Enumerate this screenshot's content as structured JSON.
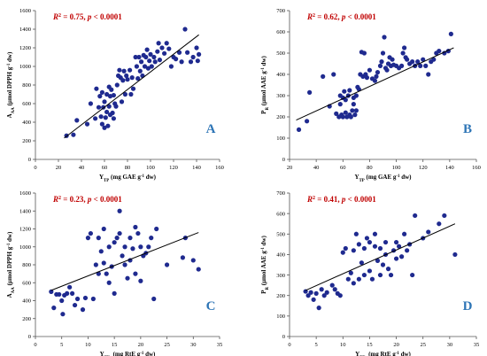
{
  "colors": {
    "marker": "#1f2a8f",
    "trendline": "#000000",
    "annotation": "#c00000",
    "panel_label": "#2e75b6",
    "axis": "#555555"
  },
  "chart_data": [
    {
      "type": "scatter",
      "panel_label": "A",
      "annotation_r2": "0.75",
      "annotation_p": "p < 0.0001",
      "ylabel": "A_AA (μmol DPPH g^-1 dw)",
      "xlabel": "Y_TP (mg GAE g^-1 dw)",
      "xlim": [
        0,
        160
      ],
      "ylim": [
        0,
        1600
      ],
      "xticks": [
        0,
        20,
        40,
        60,
        80,
        100,
        120,
        140,
        160
      ],
      "yticks": [
        0,
        200,
        400,
        600,
        800,
        1000,
        1200,
        1400,
        1600
      ],
      "trendline": {
        "x": [
          25,
          142
        ],
        "y": [
          230,
          1340
        ]
      },
      "points": [
        [
          27,
          255
        ],
        [
          33,
          265
        ],
        [
          36,
          420
        ],
        [
          45,
          380
        ],
        [
          48,
          600
        ],
        [
          52,
          440
        ],
        [
          53,
          760
        ],
        [
          55,
          560
        ],
        [
          56,
          680
        ],
        [
          57,
          460
        ],
        [
          58,
          380
        ],
        [
          58,
          720
        ],
        [
          59,
          560
        ],
        [
          60,
          340
        ],
        [
          60,
          620
        ],
        [
          61,
          450
        ],
        [
          62,
          700
        ],
        [
          62,
          510
        ],
        [
          63,
          360
        ],
        [
          64,
          570
        ],
        [
          64,
          780
        ],
        [
          65,
          680
        ],
        [
          65,
          480
        ],
        [
          66,
          750
        ],
        [
          67,
          500
        ],
        [
          68,
          690
        ],
        [
          68,
          440
        ],
        [
          69,
          600
        ],
        [
          70,
          570
        ],
        [
          71,
          800
        ],
        [
          72,
          900
        ],
        [
          73,
          960
        ],
        [
          74,
          880
        ],
        [
          75,
          620
        ],
        [
          76,
          850
        ],
        [
          77,
          950
        ],
        [
          78,
          700
        ],
        [
          79,
          900
        ],
        [
          80,
          860
        ],
        [
          82,
          960
        ],
        [
          83,
          700
        ],
        [
          84,
          880
        ],
        [
          85,
          760
        ],
        [
          87,
          1100
        ],
        [
          88,
          1000
        ],
        [
          89,
          870
        ],
        [
          90,
          1100
        ],
        [
          91,
          950
        ],
        [
          92,
          1050
        ],
        [
          93,
          900
        ],
        [
          94,
          1120
        ],
        [
          95,
          1000
        ],
        [
          96,
          1100
        ],
        [
          97,
          1180
        ],
        [
          98,
          980
        ],
        [
          99,
          1060
        ],
        [
          100,
          1130
        ],
        [
          101,
          1000
        ],
        [
          103,
          1100
        ],
        [
          104,
          1050
        ],
        [
          106,
          1160
        ],
        [
          107,
          1250
        ],
        [
          108,
          1070
        ],
        [
          110,
          1200
        ],
        [
          112,
          1140
        ],
        [
          114,
          1250
        ],
        [
          116,
          1190
        ],
        [
          118,
          1000
        ],
        [
          120,
          1100
        ],
        [
          122,
          1080
        ],
        [
          125,
          1150
        ],
        [
          127,
          1050
        ],
        [
          130,
          1400
        ],
        [
          132,
          1150
        ],
        [
          135,
          1050
        ],
        [
          137,
          1100
        ],
        [
          140,
          1200
        ],
        [
          141,
          1060
        ],
        [
          142,
          1130
        ]
      ]
    },
    {
      "type": "scatter",
      "panel_label": "B",
      "annotation_r2": "0.62",
      "annotation_p": "p < 0.0001",
      "ylabel": "P_R (μmol AAE g^-1 dw)",
      "xlabel": "Y_TP (mg GAE g^-1 dw)",
      "xlim": [
        20,
        160
      ],
      "ylim": [
        0,
        700
      ],
      "xticks": [
        20,
        40,
        60,
        80,
        100,
        120,
        140,
        160
      ],
      "yticks": [
        0,
        100,
        200,
        300,
        400,
        500,
        600,
        700
      ],
      "trendline": {
        "x": [
          25,
          143
        ],
        "y": [
          185,
          525
        ]
      },
      "points": [
        [
          27,
          140
        ],
        [
          33,
          180
        ],
        [
          35,
          315
        ],
        [
          45,
          390
        ],
        [
          50,
          250
        ],
        [
          53,
          400
        ],
        [
          55,
          215
        ],
        [
          57,
          200
        ],
        [
          58,
          260
        ],
        [
          58,
          300
        ],
        [
          59,
          210
        ],
        [
          60,
          290
        ],
        [
          60,
          200
        ],
        [
          61,
          320
        ],
        [
          62,
          220
        ],
        [
          62,
          280
        ],
        [
          63,
          200
        ],
        [
          64,
          300
        ],
        [
          65,
          210
        ],
        [
          65,
          325
        ],
        [
          66,
          200
        ],
        [
          67,
          230
        ],
        [
          68,
          290
        ],
        [
          68,
          260
        ],
        [
          69,
          210
        ],
        [
          70,
          300
        ],
        [
          70,
          230
        ],
        [
          71,
          340
        ],
        [
          72,
          330
        ],
        [
          73,
          400
        ],
        [
          74,
          505
        ],
        [
          75,
          390
        ],
        [
          76,
          500
        ],
        [
          77,
          400
        ],
        [
          78,
          385
        ],
        [
          80,
          420
        ],
        [
          82,
          380
        ],
        [
          84,
          370
        ],
        [
          85,
          390
        ],
        [
          86,
          410
        ],
        [
          88,
          440
        ],
        [
          89,
          460
        ],
        [
          90,
          500
        ],
        [
          91,
          575
        ],
        [
          92,
          430
        ],
        [
          93,
          420
        ],
        [
          94,
          450
        ],
        [
          95,
          480
        ],
        [
          96,
          440
        ],
        [
          97,
          470
        ],
        [
          98,
          445
        ],
        [
          100,
          440
        ],
        [
          102,
          430
        ],
        [
          104,
          440
        ],
        [
          105,
          500
        ],
        [
          106,
          525
        ],
        [
          107,
          480
        ],
        [
          108,
          470
        ],
        [
          110,
          450
        ],
        [
          112,
          460
        ],
        [
          114,
          440
        ],
        [
          116,
          460
        ],
        [
          118,
          440
        ],
        [
          120,
          470
        ],
        [
          122,
          440
        ],
        [
          124,
          400
        ],
        [
          126,
          460
        ],
        [
          128,
          470
        ],
        [
          130,
          500
        ],
        [
          132,
          510
        ],
        [
          136,
          500
        ],
        [
          139,
          510
        ],
        [
          141,
          590
        ]
      ]
    },
    {
      "type": "scatter",
      "panel_label": "C",
      "annotation_r2": "0.23",
      "annotation_p": "p < 0.0001",
      "ylabel": "A_AA (μmol DPPH g^-1 dw)",
      "xlabel": "Y_TFs (mg RtE g^-1 dw)",
      "xlim": [
        0,
        35
      ],
      "ylim": [
        0,
        1600
      ],
      "xticks": [
        0,
        5,
        10,
        15,
        20,
        25,
        30,
        35
      ],
      "yticks": [
        0,
        200,
        400,
        600,
        800,
        1000,
        1200,
        1400,
        1600
      ],
      "trendline": {
        "x": [
          3,
          31
        ],
        "y": [
          515,
          1160
        ]
      },
      "points": [
        [
          3,
          500
        ],
        [
          3.5,
          320
        ],
        [
          4,
          470
        ],
        [
          4.5,
          470
        ],
        [
          5,
          400
        ],
        [
          5.2,
          250
        ],
        [
          5.5,
          460
        ],
        [
          6,
          480
        ],
        [
          6.5,
          550
        ],
        [
          7,
          480
        ],
        [
          7.5,
          350
        ],
        [
          8,
          420
        ],
        [
          9,
          300
        ],
        [
          9.5,
          430
        ],
        [
          10,
          1100
        ],
        [
          10.5,
          1150
        ],
        [
          11,
          420
        ],
        [
          11.5,
          800
        ],
        [
          12,
          700
        ],
        [
          12,
          1100
        ],
        [
          12.5,
          950
        ],
        [
          13,
          820
        ],
        [
          13,
          1200
        ],
        [
          13.5,
          700
        ],
        [
          14,
          1000
        ],
        [
          14,
          600
        ],
        [
          14.5,
          780
        ],
        [
          15,
          1050
        ],
        [
          15,
          480
        ],
        [
          15.5,
          1100
        ],
        [
          16,
          1400
        ],
        [
          16,
          1150
        ],
        [
          16.5,
          900
        ],
        [
          17,
          800
        ],
        [
          17,
          1000
        ],
        [
          17.5,
          650
        ],
        [
          18,
          850
        ],
        [
          18,
          1100
        ],
        [
          18.5,
          980
        ],
        [
          19,
          700
        ],
        [
          19,
          1220
        ],
        [
          19.5,
          1150
        ],
        [
          20,
          620
        ],
        [
          20,
          1000
        ],
        [
          20.5,
          900
        ],
        [
          21,
          930
        ],
        [
          21.5,
          1000
        ],
        [
          22,
          1100
        ],
        [
          22.5,
          420
        ],
        [
          23,
          1200
        ],
        [
          25,
          800
        ],
        [
          28,
          880
        ],
        [
          28.5,
          1100
        ],
        [
          30,
          850
        ],
        [
          31,
          750
        ]
      ]
    },
    {
      "type": "scatter",
      "panel_label": "D",
      "annotation_r2": "0.41",
      "annotation_p": "p < 0.0001",
      "ylabel": "P_R (μmol AAE g^-1 dw)",
      "xlabel": "Y_TFs (mg RtE g^-1 dw)",
      "xlim": [
        0,
        35
      ],
      "ylim": [
        0,
        700
      ],
      "xticks": [
        0,
        5,
        10,
        15,
        20,
        25,
        30,
        35
      ],
      "yticks": [
        0,
        100,
        200,
        300,
        400,
        500,
        600,
        700
      ],
      "trendline": {
        "x": [
          3,
          31
        ],
        "y": [
          225,
          550
        ]
      },
      "points": [
        [
          3,
          220
        ],
        [
          3.5,
          200
        ],
        [
          4,
          215
        ],
        [
          4.5,
          180
        ],
        [
          5,
          210
        ],
        [
          5.5,
          140
        ],
        [
          6,
          230
        ],
        [
          6.5,
          200
        ],
        [
          7,
          215
        ],
        [
          8,
          250
        ],
        [
          8.5,
          230
        ],
        [
          9,
          210
        ],
        [
          9.5,
          200
        ],
        [
          10,
          410
        ],
        [
          10.5,
          430
        ],
        [
          11,
          280
        ],
        [
          11.5,
          310
        ],
        [
          12,
          260
        ],
        [
          12,
          420
        ],
        [
          12.5,
          500
        ],
        [
          13,
          280
        ],
        [
          13,
          450
        ],
        [
          13.5,
          360
        ],
        [
          14,
          300
        ],
        [
          14,
          430
        ],
        [
          14.5,
          480
        ],
        [
          15,
          320
        ],
        [
          15,
          460
        ],
        [
          15.5,
          280
        ],
        [
          16,
          440
        ],
        [
          16,
          500
        ],
        [
          16.5,
          370
        ],
        [
          17,
          300
        ],
        [
          17,
          430
        ],
        [
          17.5,
          350
        ],
        [
          18,
          460
        ],
        [
          18,
          400
        ],
        [
          18.5,
          330
        ],
        [
          19,
          300
        ],
        [
          19.5,
          420
        ],
        [
          20,
          380
        ],
        [
          20,
          460
        ],
        [
          20.5,
          440
        ],
        [
          21,
          390
        ],
        [
          21.5,
          500
        ],
        [
          22,
          420
        ],
        [
          22.5,
          450
        ],
        [
          23,
          300
        ],
        [
          23.5,
          590
        ],
        [
          25,
          480
        ],
        [
          26,
          510
        ],
        [
          28,
          550
        ],
        [
          29,
          590
        ],
        [
          31,
          400
        ]
      ]
    }
  ]
}
